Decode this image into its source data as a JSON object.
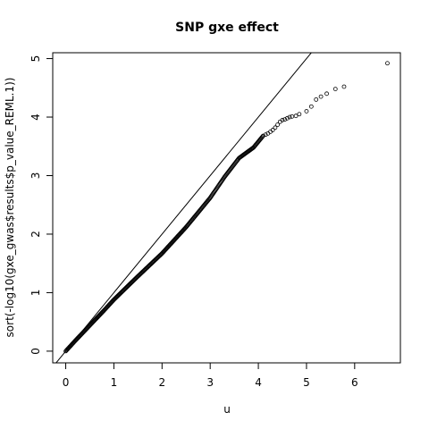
{
  "chart_data": {
    "type": "scatter",
    "title": "SNP gxe effect",
    "xlabel": "u",
    "ylabel": "sort(-log10(gxe_gwas$results$p_value_REML.1))",
    "xlim": [
      -0.27,
      6.95
    ],
    "ylim": [
      -0.2,
      5.1
    ],
    "x_ticks": [
      0,
      1,
      2,
      3,
      4,
      5,
      6
    ],
    "y_ticks": [
      0,
      1,
      2,
      3,
      4,
      5
    ],
    "x_tick_labels": [
      "0",
      "1",
      "2",
      "3",
      "4",
      "5",
      "6"
    ],
    "y_tick_labels": [
      "0",
      "1",
      "2",
      "3",
      "4",
      "5"
    ],
    "grid": false,
    "reference_line": {
      "slope": 1,
      "intercept": 0
    },
    "points_dense": [
      [
        0,
        0
      ],
      [
        0.2,
        0.18
      ],
      [
        0.5,
        0.44
      ],
      [
        0.8,
        0.7
      ],
      [
        1.0,
        0.88
      ],
      [
        1.5,
        1.28
      ],
      [
        2.0,
        1.67
      ],
      [
        2.5,
        2.12
      ],
      [
        3.0,
        2.62
      ],
      [
        3.3,
        2.98
      ],
      [
        3.6,
        3.3
      ],
      [
        3.9,
        3.48
      ],
      [
        4.1,
        3.68
      ]
    ],
    "points_tail": [
      [
        4.15,
        3.7
      ],
      [
        4.2,
        3.72
      ],
      [
        4.25,
        3.75
      ],
      [
        4.3,
        3.78
      ],
      [
        4.35,
        3.82
      ],
      [
        4.4,
        3.87
      ],
      [
        4.45,
        3.92
      ],
      [
        4.5,
        3.95
      ],
      [
        4.55,
        3.96
      ],
      [
        4.6,
        3.98
      ],
      [
        4.65,
        4.0
      ],
      [
        4.7,
        4.01
      ],
      [
        4.78,
        4.02
      ],
      [
        4.85,
        4.05
      ],
      [
        5.0,
        4.1
      ],
      [
        5.1,
        4.18
      ],
      [
        5.2,
        4.3
      ],
      [
        5.3,
        4.35
      ],
      [
        5.42,
        4.4
      ],
      [
        5.6,
        4.48
      ],
      [
        5.78,
        4.52
      ],
      [
        6.68,
        4.92
      ]
    ]
  }
}
